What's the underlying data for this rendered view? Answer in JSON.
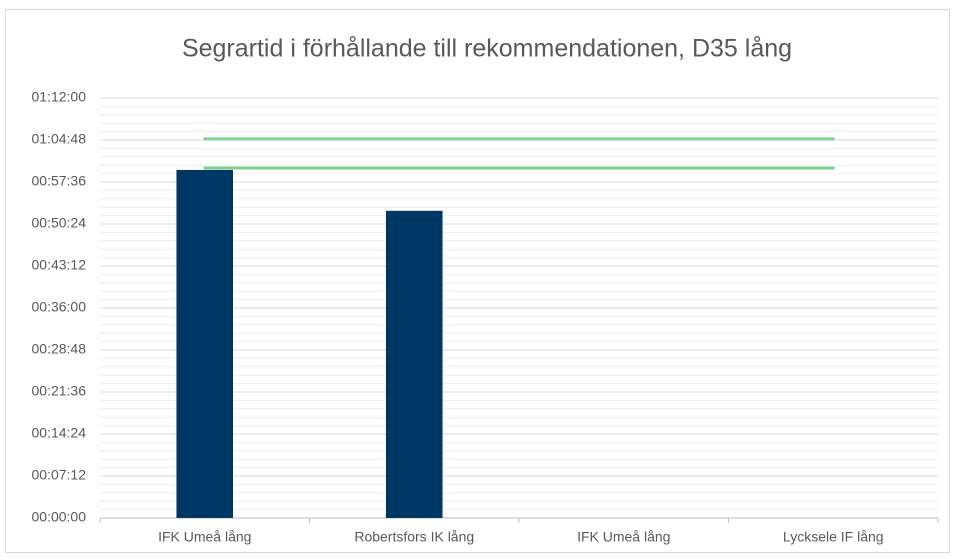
{
  "chart_data": {
    "type": "bar",
    "title": "Segrartid i förhållande till rekommendationen, D35 lång",
    "categories": [
      "IFK Umeå lång",
      "Robertsfors IK lång",
      "IFK Umeå lång",
      "Lycksele IF lång"
    ],
    "series": [
      {
        "type": "bar",
        "color": "#003865",
        "values": [
          3580,
          3160,
          null,
          null
        ]
      },
      {
        "type": "line",
        "color": "#7fcf95",
        "values": [
          3900,
          3900,
          3900,
          3900
        ]
      },
      {
        "type": "line",
        "color": "#7fcf95",
        "values": [
          3600,
          3600,
          3600,
          3600
        ]
      }
    ],
    "ylim": [
      0,
      4320
    ],
    "yticks": [
      {
        "value": 0,
        "label": "00:00:00"
      },
      {
        "value": 432,
        "label": "00:07:12"
      },
      {
        "value": 864,
        "label": "00:14:24"
      },
      {
        "value": 1296,
        "label": "00:21:36"
      },
      {
        "value": 1728,
        "label": "00:28:48"
      },
      {
        "value": 2160,
        "label": "00:36:00"
      },
      {
        "value": 2592,
        "label": "00:43:12"
      },
      {
        "value": 3024,
        "label": "00:50:24"
      },
      {
        "value": 3456,
        "label": "00:57:36"
      },
      {
        "value": 3888,
        "label": "01:04:48"
      },
      {
        "value": 4320,
        "label": "01:12:00"
      }
    ],
    "grid": true
  }
}
